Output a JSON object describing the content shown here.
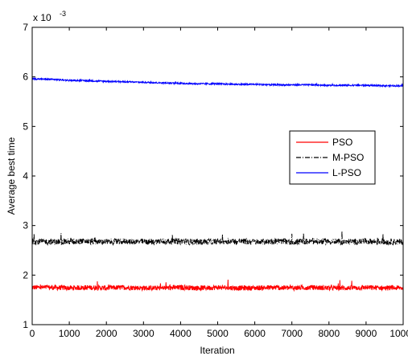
{
  "chart_data": {
    "type": "line",
    "xlabel": "Iteration",
    "ylabel": "Average best time",
    "y_multiplier_label": "x 10",
    "y_multiplier_exponent": "-3",
    "xlim": [
      0,
      10000
    ],
    "ylim": [
      1,
      7
    ],
    "x_ticks": [
      0,
      1000,
      2000,
      3000,
      4000,
      5000,
      6000,
      7000,
      8000,
      9000,
      10000
    ],
    "y_ticks": [
      1,
      2,
      3,
      4,
      5,
      6,
      7
    ],
    "x_tick_labels": [
      "0",
      "1000",
      "2000",
      "3000",
      "4000",
      "5000",
      "6000",
      "7000",
      "8000",
      "9000",
      "10000"
    ],
    "y_tick_labels": [
      "1",
      "2",
      "3",
      "4",
      "5",
      "6",
      "7"
    ],
    "grid": false,
    "legend_position": "right-middle",
    "x": [
      0,
      500,
      1000,
      1500,
      2000,
      2500,
      3000,
      3500,
      4000,
      4500,
      5000,
      5500,
      6000,
      6500,
      7000,
      7500,
      8000,
      8500,
      9000,
      9500,
      10000
    ],
    "series": [
      {
        "name": "PSO",
        "color": "#ff0000",
        "dash": "solid",
        "noise": 0.05,
        "values": [
          1.75,
          1.75,
          1.74,
          1.75,
          1.74,
          1.75,
          1.74,
          1.74,
          1.75,
          1.74,
          1.75,
          1.74,
          1.74,
          1.75,
          1.74,
          1.75,
          1.74,
          1.74,
          1.75,
          1.74,
          1.74
        ]
      },
      {
        "name": "M-PSO",
        "color": "#000000",
        "dash": "dashdot",
        "noise": 0.06,
        "values": [
          2.68,
          2.67,
          2.68,
          2.68,
          2.67,
          2.68,
          2.67,
          2.68,
          2.68,
          2.67,
          2.68,
          2.68,
          2.67,
          2.68,
          2.67,
          2.68,
          2.68,
          2.67,
          2.68,
          2.67,
          2.67
        ]
      },
      {
        "name": "L-PSO",
        "color": "#0000ff",
        "dash": "solid",
        "noise": 0.015,
        "values": [
          5.96,
          5.95,
          5.93,
          5.92,
          5.91,
          5.9,
          5.89,
          5.88,
          5.87,
          5.86,
          5.86,
          5.85,
          5.85,
          5.84,
          5.84,
          5.84,
          5.83,
          5.83,
          5.83,
          5.82,
          5.82
        ]
      }
    ]
  }
}
